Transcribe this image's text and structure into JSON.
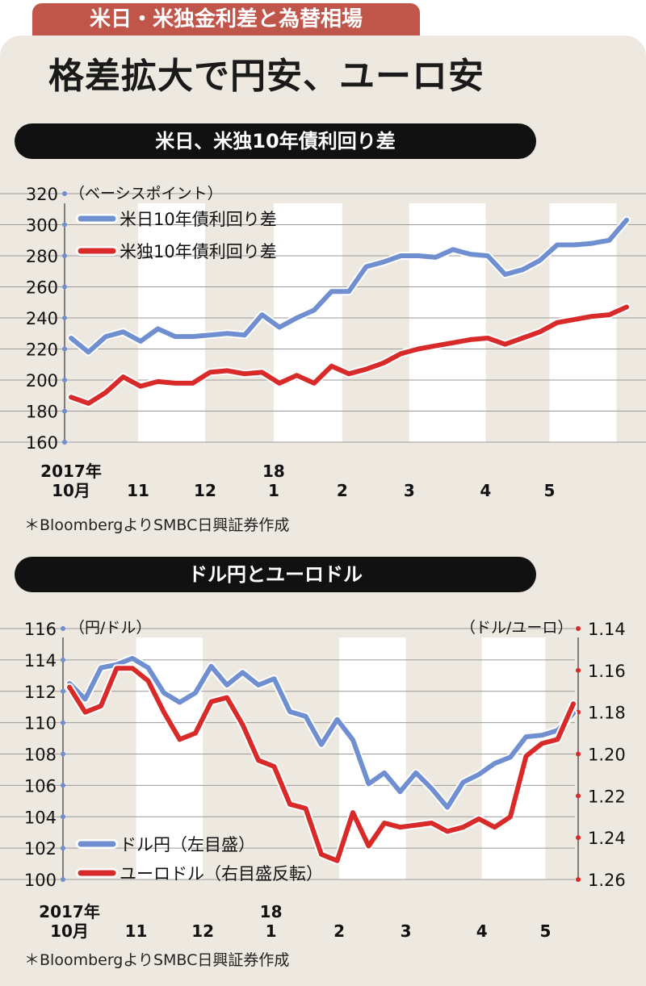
{
  "header": {
    "tag": "米日・米独金利差と為替相場",
    "headline": "格差拡大で円安、ユーロ安"
  },
  "colors": {
    "blue": "#6f8fd0",
    "red": "#d92a2a",
    "stripe": "#ffffff",
    "panel": "#ede9e1"
  },
  "chart_data": [
    {
      "type": "line",
      "title": "米日、米独10年債利回り差",
      "unit_label": "（ベーシスポイント）",
      "ylim": [
        160,
        320
      ],
      "yticks": [
        160,
        180,
        200,
        220,
        240,
        260,
        280,
        300,
        320
      ],
      "x_month_labels": [
        {
          "top": "2017年",
          "bottom": "10月",
          "pos": 0
        },
        {
          "top": "",
          "bottom": "11",
          "pos": 4.3
        },
        {
          "top": "",
          "bottom": "12",
          "pos": 8.6
        },
        {
          "top": "18",
          "bottom": "1",
          "pos": 13
        },
        {
          "top": "",
          "bottom": "2",
          "pos": 17.4
        },
        {
          "top": "",
          "bottom": "3",
          "pos": 21.7
        },
        {
          "top": "",
          "bottom": "4",
          "pos": 26.6
        },
        {
          "top": "",
          "bottom": "5",
          "pos": 30.7
        }
      ],
      "stripes": [
        [
          4.3,
          8.6
        ],
        [
          13,
          17.4
        ],
        [
          21.7,
          26.6
        ],
        [
          30.7,
          35
        ]
      ],
      "series": [
        {
          "name": "米日10年債利回り差",
          "color": "blue",
          "values": [
            227,
            218,
            228,
            231,
            225,
            233,
            228,
            228,
            229,
            230,
            229,
            242,
            234,
            240,
            245,
            257,
            257,
            273,
            276,
            280,
            280,
            279,
            284,
            281,
            280,
            268,
            271,
            277,
            287,
            287,
            288,
            290,
            303
          ]
        },
        {
          "name": "米独10年債利回り差",
          "color": "red",
          "values": [
            189,
            185,
            192,
            202,
            196,
            199,
            198,
            198,
            205,
            206,
            204,
            205,
            198,
            203,
            198,
            209,
            204,
            207,
            211,
            217,
            220,
            222,
            224,
            226,
            227,
            223,
            227,
            231,
            237,
            239,
            241,
            242,
            247
          ]
        }
      ],
      "source": "＊BloombergよりSMBC日興証券作成"
    },
    {
      "type": "line",
      "title": "ドル円とユーロドル",
      "left_unit": "（円/ドル）",
      "right_unit": "（ドル/ユーロ）",
      "ylim": [
        100,
        116
      ],
      "yticks": [
        100,
        102,
        104,
        106,
        108,
        110,
        112,
        114,
        116
      ],
      "y2lim": [
        1.26,
        1.14
      ],
      "y2ticks": [
        "1.14",
        "1.16",
        "1.18",
        "1.20",
        "1.22",
        "1.24",
        "1.26"
      ],
      "y2values": [
        1.14,
        1.16,
        1.18,
        1.2,
        1.22,
        1.24,
        1.26
      ],
      "x_month_labels": [
        {
          "top": "2017年",
          "bottom": "10月",
          "pos": 0
        },
        {
          "top": "",
          "bottom": "11",
          "pos": 4.3
        },
        {
          "top": "",
          "bottom": "12",
          "pos": 8.6
        },
        {
          "top": "18",
          "bottom": "1",
          "pos": 13
        },
        {
          "top": "",
          "bottom": "2",
          "pos": 17.4
        },
        {
          "top": "",
          "bottom": "3",
          "pos": 21.7
        },
        {
          "top": "",
          "bottom": "4",
          "pos": 26.6
        },
        {
          "top": "",
          "bottom": "5",
          "pos": 30.7
        }
      ],
      "stripes": [
        [
          4.3,
          8.6
        ],
        [
          17.4,
          21.7
        ],
        [
          26.6,
          30.7
        ]
      ],
      "series": [
        {
          "name": "ドル円（左目盛）",
          "color": "blue",
          "axis": "left",
          "values": [
            112.5,
            111.5,
            113.5,
            113.7,
            114.1,
            113.5,
            111.9,
            111.3,
            111.9,
            113.6,
            112.4,
            113.2,
            112.4,
            112.8,
            110.7,
            110.4,
            108.6,
            110.2,
            108.9,
            106.1,
            106.8,
            105.6,
            106.8,
            105.8,
            104.6,
            106.2,
            106.7,
            107.4,
            107.8,
            109.1,
            109.2,
            109.5,
            110.6
          ]
        },
        {
          "name": "ユーロドル（右目盛反転）",
          "color": "red",
          "axis": "right",
          "values": [
            1.168,
            1.18,
            1.177,
            1.159,
            1.159,
            1.165,
            1.18,
            1.193,
            1.19,
            1.175,
            1.173,
            1.186,
            1.203,
            1.206,
            1.224,
            1.226,
            1.248,
            1.251,
            1.228,
            1.244,
            1.233,
            1.235,
            1.234,
            1.233,
            1.237,
            1.235,
            1.231,
            1.235,
            1.23,
            1.201,
            1.195,
            1.193,
            1.176
          ]
        }
      ],
      "source": "＊BloombergよりSMBC日興証券作成"
    }
  ]
}
